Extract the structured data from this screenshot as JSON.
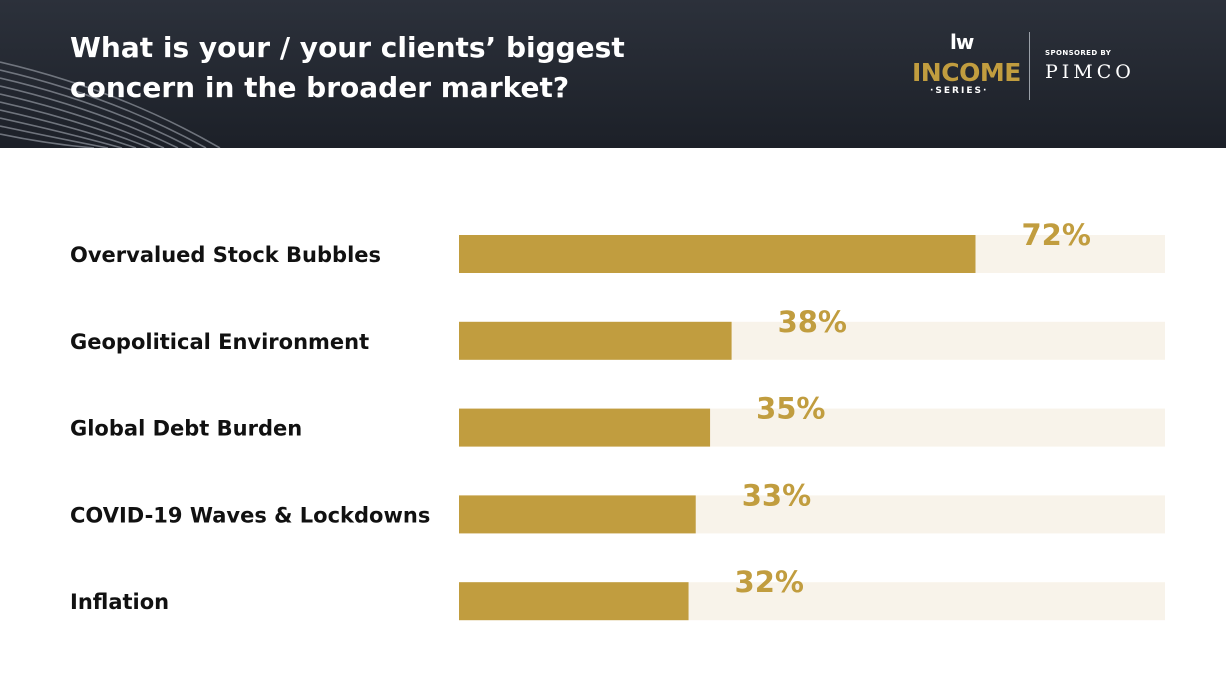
{
  "header": {
    "title_lines": [
      "What is your / your clients’ biggest",
      "concern in the broader market?"
    ],
    "logo": {
      "lw_mark": "lw",
      "income": "INCOME",
      "series": "·SERIES·",
      "sponsored_by": "SPONSORED BY",
      "sponsor": "PIMCO"
    }
  },
  "colors": {
    "header_bg": "#232831",
    "bar": "#c19d3f",
    "track": "#f8f3ea",
    "value_text": "#c19d3f",
    "label_text": "#111111"
  },
  "chart_data": {
    "type": "bar",
    "orientation": "horizontal",
    "title": "What is your / your clients’ biggest concern in the broader market?",
    "categories": [
      "Overvalued Stock Bubbles",
      "Geopolitical Environment",
      "Global Debt Burden",
      "COVID-19 Waves & Lockdowns",
      "Inflation"
    ],
    "values": [
      72,
      38,
      35,
      33,
      32
    ],
    "value_labels": [
      "72%",
      "38%",
      "35%",
      "33%",
      "32%"
    ],
    "unit": "%",
    "xlim": [
      0,
      98
    ],
    "grid": false,
    "legend": "none"
  }
}
